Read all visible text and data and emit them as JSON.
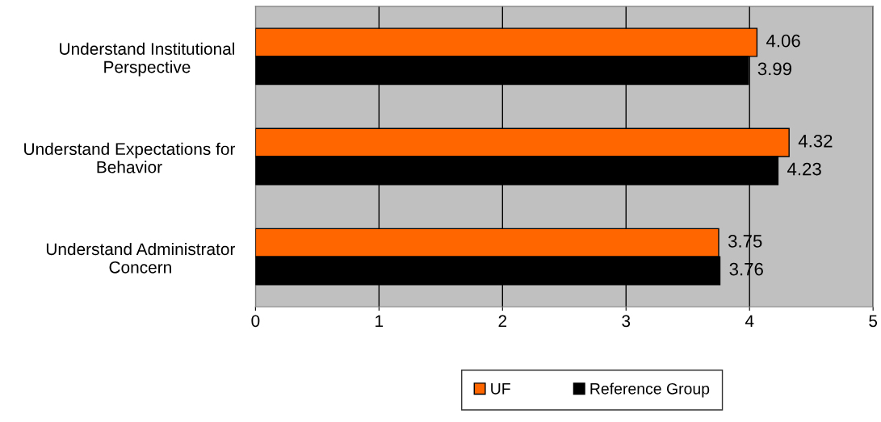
{
  "chart_data": {
    "type": "bar",
    "orientation": "horizontal",
    "categories": [
      "Understand Institutional Perspective",
      "Understand Expectations for Behavior",
      "Understand Administrator Concern"
    ],
    "series": [
      {
        "name": "UF",
        "color": "#ff6600",
        "values": [
          4.06,
          4.32,
          3.75
        ]
      },
      {
        "name": "Reference Group",
        "color": "#000000",
        "values": [
          3.99,
          4.23,
          3.76
        ]
      }
    ],
    "xlim": [
      0,
      5
    ],
    "xticks": [
      0,
      1,
      2,
      3,
      4,
      5
    ],
    "grid": "x",
    "legend": "bottom",
    "data_labels": true
  }
}
